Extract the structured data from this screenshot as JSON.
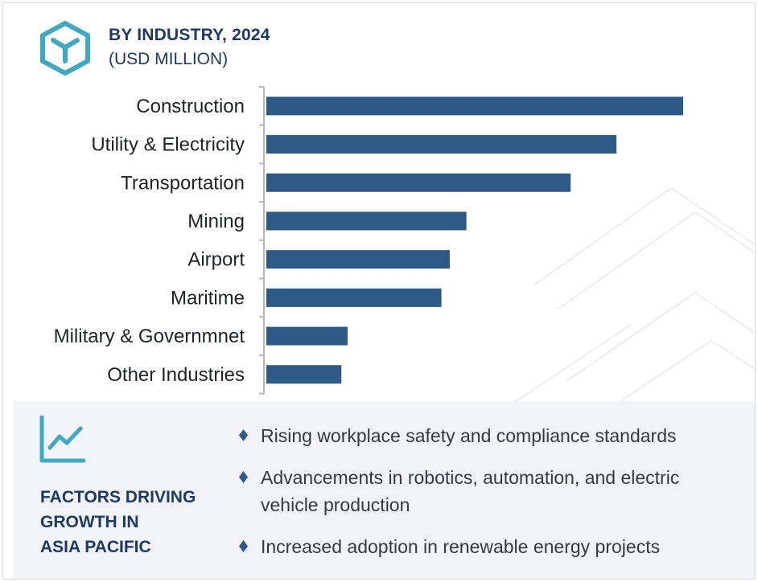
{
  "header": {
    "title": "BY INDUSTRY, 2024",
    "subtitle": "(USD MILLION)",
    "logo_icon": "hexagon-y-logo-icon"
  },
  "colors": {
    "bar": "#2d5a87",
    "title": "#1c3a66",
    "accent": "#3fa9c1",
    "panel_bg": "#f2f3f7",
    "axis": "#b5b9bf"
  },
  "chart_data": {
    "type": "bar",
    "orientation": "horizontal",
    "title": "BY INDUSTRY, 2024",
    "subtitle": "(USD MILLION)",
    "categories": [
      "Construction",
      "Utility & Electricity",
      "Transportation",
      "Mining",
      "Airport",
      "Maritime",
      "Military & Governmnet",
      "Other Industries"
    ],
    "values": [
      100,
      84,
      73,
      48,
      44,
      42,
      19.5,
      18
    ],
    "xlim": [
      0,
      100
    ],
    "grid": false,
    "value_labels": false
  },
  "factors": {
    "icon": "trend-line-chart-icon",
    "title_lines": [
      "FACTORS DRIVING",
      "GROWTH IN",
      "ASIA PACIFIC"
    ],
    "bullets": [
      "Rising workplace safety and compliance standards",
      "Advancements in robotics, automation, and electric vehicle production",
      "Increased adoption in renewable energy projects"
    ]
  }
}
